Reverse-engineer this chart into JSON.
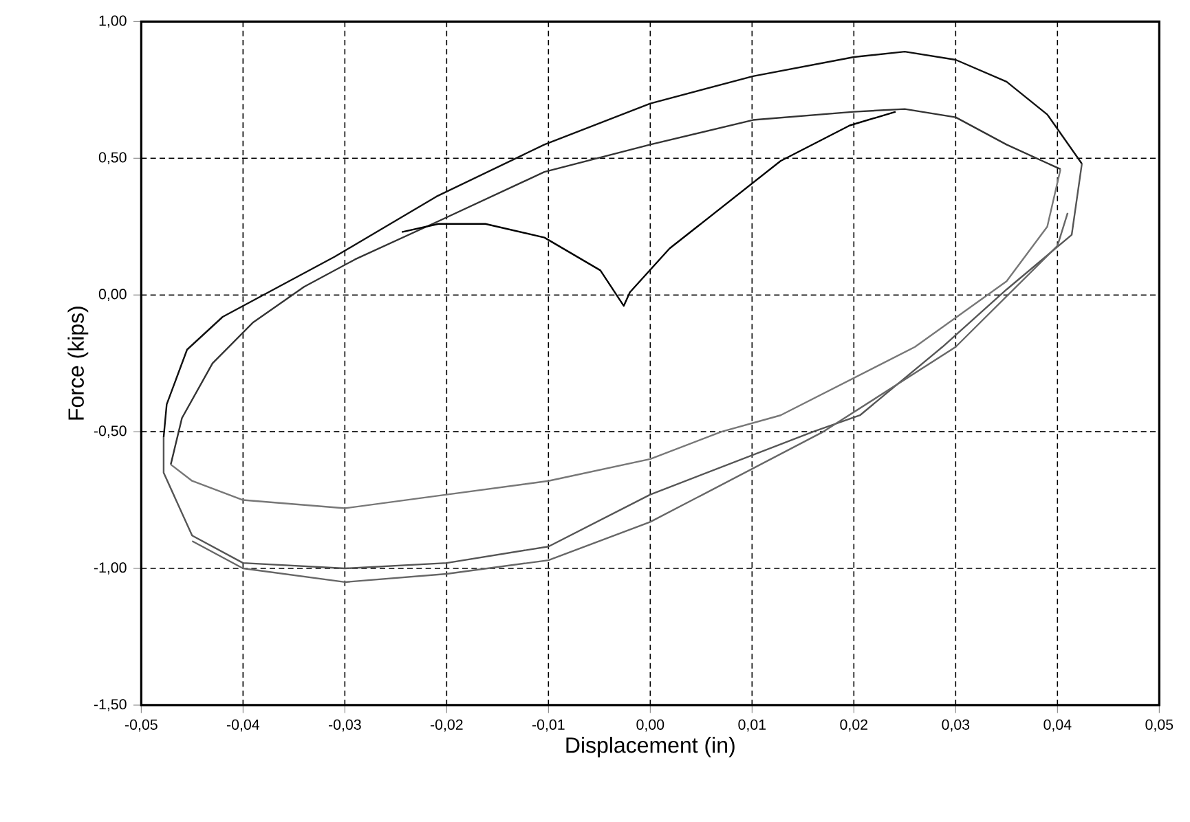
{
  "chart_data": {
    "type": "line",
    "xlabel": "Displacement (in)",
    "ylabel": "Force (kips)",
    "xlim": [
      -0.05,
      0.05
    ],
    "ylim": [
      -1.5,
      1.0
    ],
    "xticks": [
      {
        "value": -0.05,
        "label": "-0,05"
      },
      {
        "value": -0.04,
        "label": "-0,04"
      },
      {
        "value": -0.03,
        "label": "-0,03"
      },
      {
        "value": -0.02,
        "label": "-0,02"
      },
      {
        "value": -0.01,
        "label": "-0,01"
      },
      {
        "value": 0.0,
        "label": "0,00"
      },
      {
        "value": 0.01,
        "label": "0,01"
      },
      {
        "value": 0.02,
        "label": "0,02"
      },
      {
        "value": 0.03,
        "label": "0,03"
      },
      {
        "value": 0.04,
        "label": "0,04"
      },
      {
        "value": 0.05,
        "label": "0,05"
      }
    ],
    "yticks": [
      {
        "value": -1.5,
        "label": "-1,50"
      },
      {
        "value": -1.0,
        "label": "-1,00"
      },
      {
        "value": -0.5,
        "label": "-0,50"
      },
      {
        "value": 0.0,
        "label": "0,00"
      },
      {
        "value": 0.5,
        "label": "0,50"
      },
      {
        "value": 1.0,
        "label": "1,00"
      }
    ],
    "grid": true,
    "marker": "none",
    "line_style": "solid",
    "series": [
      {
        "color": "#111111",
        "x": [
          -0.0478,
          -0.0475,
          -0.0455,
          -0.042,
          -0.036,
          -0.031,
          -0.021,
          -0.0104,
          0.0,
          0.0101,
          0.02,
          0.025,
          0.03,
          0.035,
          0.039,
          0.0424
        ],
        "values": [
          -0.52,
          -0.4,
          -0.2,
          -0.08,
          0.04,
          0.14,
          0.36,
          0.55,
          0.7,
          0.8,
          0.87,
          0.89,
          0.86,
          0.78,
          0.66,
          0.48
        ]
      },
      {
        "color": "#555555",
        "x": [
          0.0424,
          0.0414,
          0.035,
          0.0287,
          0.0206,
          0.016,
          0.0,
          -0.01,
          -0.02,
          -0.03,
          -0.04,
          -0.045,
          -0.0478,
          -0.0478
        ],
        "values": [
          0.48,
          0.22,
          0.02,
          -0.19,
          -0.44,
          -0.5,
          -0.73,
          -0.92,
          -0.98,
          -1.0,
          -0.98,
          -0.88,
          -0.65,
          -0.52
        ]
      },
      {
        "color": "#333333",
        "x": [
          -0.0471,
          -0.046,
          -0.043,
          -0.039,
          -0.034,
          -0.029,
          -0.0208,
          -0.0104,
          0.0,
          0.0101,
          0.02,
          0.025,
          0.03,
          0.035,
          0.0403
        ],
        "values": [
          -0.62,
          -0.45,
          -0.25,
          -0.1,
          0.03,
          0.13,
          0.27,
          0.45,
          0.55,
          0.64,
          0.67,
          0.68,
          0.65,
          0.55,
          0.46
        ]
      },
      {
        "color": "#777777",
        "x": [
          0.0403,
          0.039,
          0.035,
          0.026,
          0.0128,
          0.007,
          0.0,
          -0.01,
          -0.02,
          -0.03,
          -0.04,
          -0.045,
          -0.0471
        ],
        "values": [
          0.46,
          0.25,
          0.05,
          -0.19,
          -0.44,
          -0.5,
          -0.6,
          -0.68,
          -0.73,
          -0.78,
          -0.75,
          -0.68,
          -0.62
        ]
      },
      {
        "color": "#666666",
        "x": [
          0.041,
          0.04,
          0.03,
          0.017,
          0.0,
          -0.01,
          -0.02,
          -0.03,
          -0.04,
          -0.045
        ],
        "values": [
          0.3,
          0.18,
          -0.19,
          -0.5,
          -0.83,
          -0.97,
          -1.02,
          -1.05,
          -1.0,
          -0.9
        ]
      },
      {
        "color": "#000000",
        "x": [
          -0.0244,
          -0.0208,
          -0.0162,
          -0.0104,
          -0.0049,
          -0.0026,
          -0.002,
          0.0019,
          0.0128,
          0.0196,
          0.0241
        ],
        "values": [
          0.23,
          0.26,
          0.26,
          0.21,
          0.09,
          -0.04,
          0.01,
          0.17,
          0.49,
          0.62,
          0.67
        ]
      }
    ]
  }
}
